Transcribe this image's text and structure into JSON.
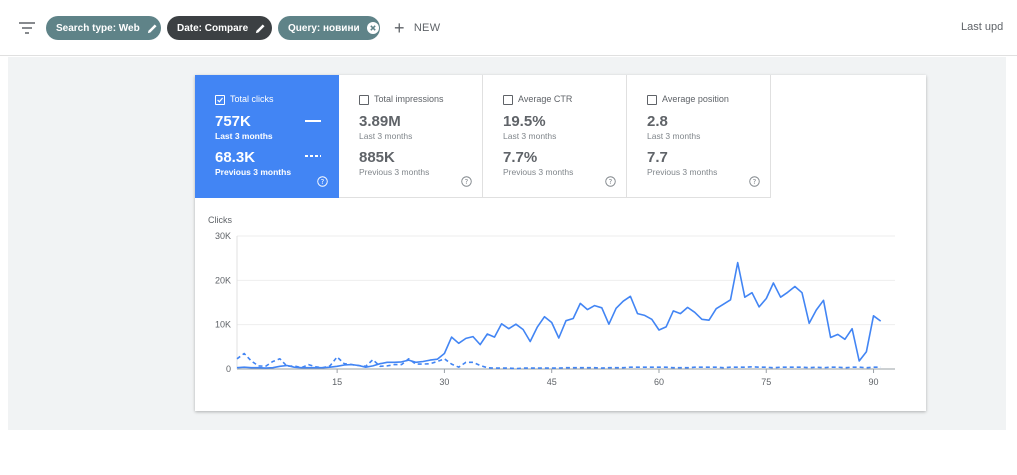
{
  "topbar": {
    "chips": [
      {
        "label": "Search type: Web",
        "icon": "pencil-icon"
      },
      {
        "label": "Date: Compare",
        "icon": "pencil-icon"
      },
      {
        "label": "Query: новини",
        "icon": "close-circle-icon"
      }
    ],
    "new_label": "NEW",
    "last_updated": "Last upd"
  },
  "metrics": [
    {
      "label": "Total clicks",
      "checked": true,
      "value": "757K",
      "period": "Last 3 months",
      "prev_value": "68.3K",
      "prev_period": "Previous 3 months",
      "color": "#4285f4"
    },
    {
      "label": "Total impressions",
      "checked": false,
      "value": "3.89M",
      "period": "Last 3 months",
      "prev_value": "885K",
      "prev_period": "Previous 3 months"
    },
    {
      "label": "Average CTR",
      "checked": false,
      "value": "19.5%",
      "period": "Last 3 months",
      "prev_value": "7.7%",
      "prev_period": "Previous 3 months"
    },
    {
      "label": "Average position",
      "checked": false,
      "value": "2.8",
      "period": "Last 3 months",
      "prev_value": "7.7",
      "prev_period": "Previous 3 months"
    }
  ],
  "chart_data": {
    "type": "line",
    "ylabel": "Clicks",
    "yticks": [
      "30K",
      "20K",
      "10K",
      "0"
    ],
    "ylim": [
      0,
      30000
    ],
    "xticks": [
      15,
      30,
      45,
      60,
      75,
      90
    ],
    "xlim": [
      1,
      93
    ],
    "grid": true,
    "color": "#4285f4",
    "series": [
      {
        "style": "solid",
        "values": [
          300,
          400,
          300,
          300,
          200,
          300,
          600,
          800,
          400,
          300,
          300,
          300,
          300,
          400,
          600,
          900,
          1000,
          800,
          400,
          700,
          1200,
          1500,
          1500,
          1600,
          2000,
          1500,
          1700,
          2000,
          2200,
          3500,
          7200,
          5800,
          6900,
          7300,
          5500,
          7900,
          7200,
          10200,
          9100,
          10100,
          8900,
          6200,
          9500,
          11800,
          10500,
          7000,
          10900,
          11400,
          14800,
          13400,
          14300,
          13800,
          10100,
          13700,
          15300,
          16400,
          12500,
          12100,
          11200,
          8800,
          9500,
          13100,
          12500,
          13900,
          12800,
          11200,
          11000,
          13600,
          14600,
          15600,
          24000,
          16200,
          17200,
          14000,
          15900,
          19400,
          16200,
          17300,
          18600,
          17200,
          10300,
          13300,
          15500,
          7100,
          7800,
          6700,
          9100,
          1800,
          3900,
          12000,
          10800
        ]
      },
      {
        "style": "dashed",
        "values": [
          2300,
          3500,
          1800,
          700,
          600,
          1700,
          2300,
          600,
          700,
          300,
          1000,
          500,
          300,
          700,
          2700,
          1200,
          1000,
          800,
          600,
          2100,
          600,
          700,
          1000,
          1000,
          2300,
          1100,
          1100,
          1200,
          1700,
          2300,
          1100,
          400,
          1500,
          1500,
          800,
          300,
          200,
          200,
          200,
          100,
          200,
          200,
          200,
          200,
          200,
          200,
          300,
          300,
          300,
          300,
          300,
          200,
          300,
          300,
          300,
          400,
          400,
          400,
          400,
          400,
          400,
          300,
          300,
          300,
          400,
          400,
          400,
          400,
          300,
          400,
          400,
          400,
          500,
          400,
          400,
          300,
          400,
          400,
          400,
          400,
          300,
          400,
          300,
          400,
          400,
          300,
          400,
          400,
          300,
          400,
          400
        ]
      }
    ]
  }
}
